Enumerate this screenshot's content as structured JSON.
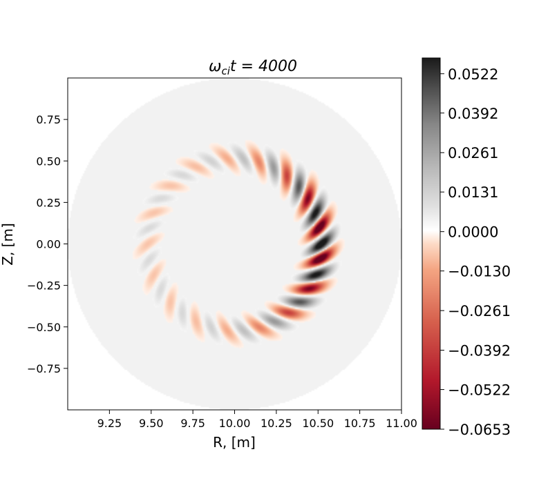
{
  "chart_data": {
    "type": "heatmap",
    "title_main": "ω",
    "title_sub": "ci",
    "title_rest": "t = 4000",
    "xlabel": "R, [m]",
    "ylabel": "Z, [m]",
    "xlim": [
      9.0,
      11.0
    ],
    "ylim": [
      -1.0,
      1.0
    ],
    "x_ticks": [
      9.25,
      9.5,
      9.75,
      10.0,
      10.25,
      10.5,
      10.75,
      11.0
    ],
    "x_tick_labels": [
      "9.25",
      "9.50",
      "9.75",
      "10.00",
      "10.25",
      "10.50",
      "10.75",
      "11.00"
    ],
    "y_ticks": [
      0.75,
      0.5,
      0.25,
      0.0,
      -0.25,
      -0.5,
      -0.75
    ],
    "y_tick_labels": [
      "0.75",
      "0.50",
      "0.25",
      "0.00",
      "−0.25",
      "−0.50",
      "−0.75"
    ],
    "domain": {
      "center_R": 10.0,
      "center_Z": 0.0,
      "radius": 1.0
    },
    "mode": {
      "center_R": 10.0,
      "center_Z": 0.0,
      "peak_radius": 0.52,
      "lobes": 34,
      "peak_angle_deg": 0
    },
    "colorbar": {
      "range": [
        -0.0653,
        0.0574
      ],
      "ticks": [
        0.0522,
        0.0392,
        0.0261,
        0.0131,
        0.0,
        -0.013,
        -0.0261,
        -0.0392,
        -0.0522,
        -0.0653
      ],
      "tick_labels": [
        "0.0522",
        "0.0392",
        "0.0261",
        "0.0131",
        "0.0000",
        "−0.0130",
        "−0.0261",
        "−0.0392",
        "−0.0522",
        "−0.0653"
      ],
      "colormap": "RdGy",
      "colors": {
        "negative_end": "#67001f",
        "mid_negative": "#f4a582",
        "zero": "#ffffff",
        "mid_positive": "#bababa",
        "positive_end": "#1a1a1a"
      }
    }
  }
}
